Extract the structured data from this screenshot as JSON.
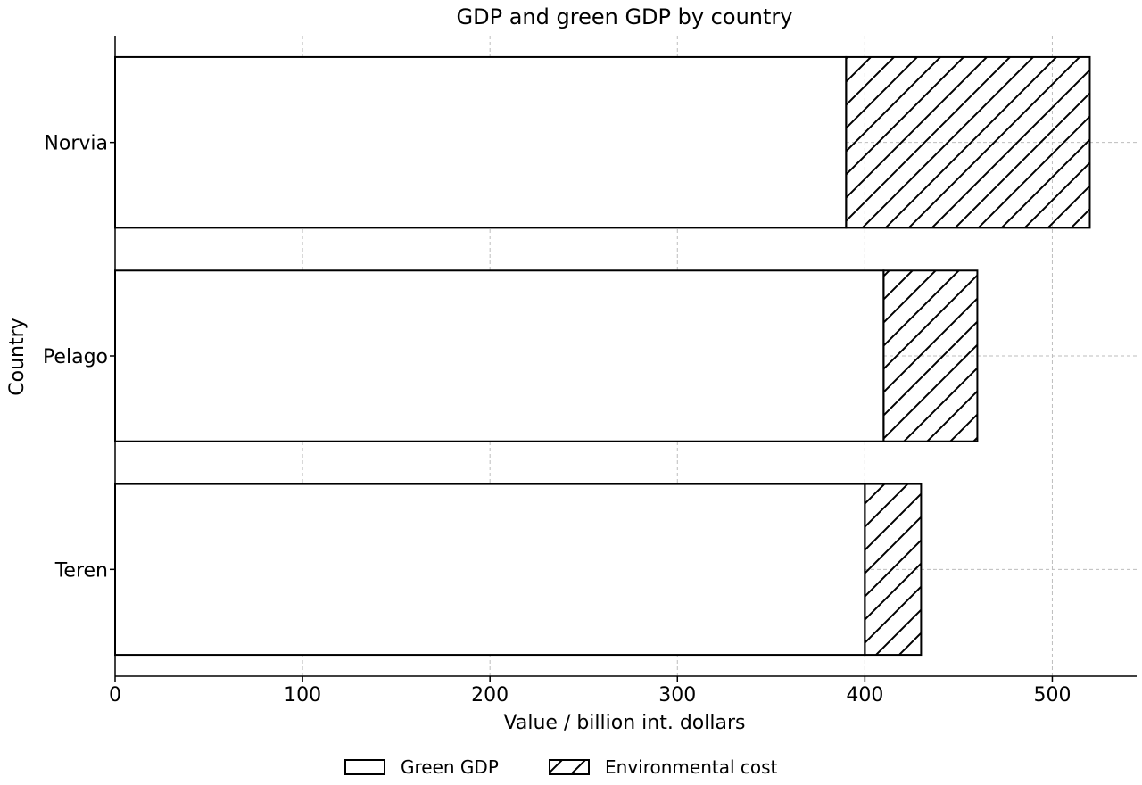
{
  "chart_data": {
    "type": "bar",
    "orientation": "horizontal",
    "stacked": true,
    "title": "GDP and green GDP by country",
    "xlabel": "Value / billion int. dollars",
    "ylabel": "Country",
    "categories": [
      "Norvia",
      "Pelago",
      "Teren"
    ],
    "series": [
      {
        "name": "Green GDP",
        "values": [
          390,
          410,
          400
        ],
        "fill": "#ffffff",
        "pattern": "none"
      },
      {
        "name": "Environmental cost",
        "values": [
          130,
          50,
          30
        ],
        "fill": "#ffffff",
        "pattern": "diagonal-hatch"
      }
    ],
    "xlim": [
      0,
      545
    ],
    "xticks": [
      0,
      100,
      200,
      300,
      400,
      500
    ],
    "grid": true,
    "legend_position": "bottom-center",
    "colors": {
      "edge": "#000000",
      "grid": "#bdbdbd",
      "background": "#ffffff"
    }
  }
}
